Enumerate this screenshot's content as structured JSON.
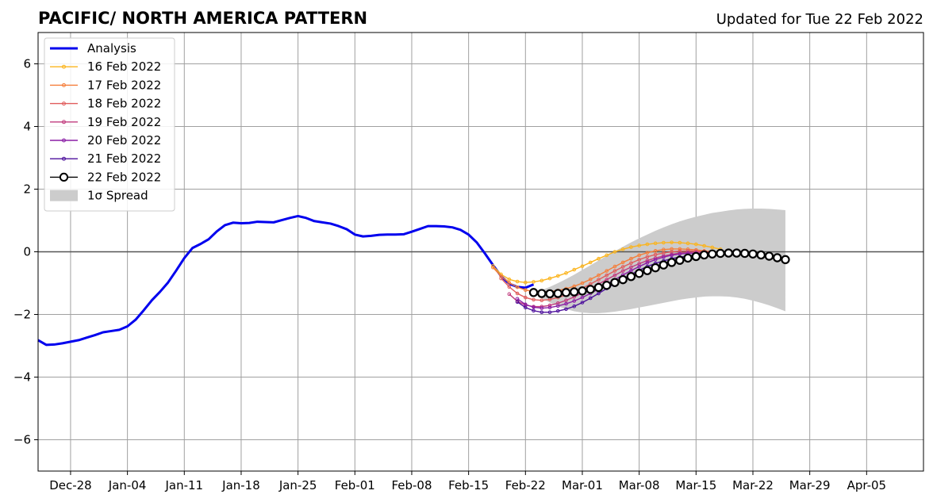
{
  "chart_data": {
    "type": "line",
    "title": "PACIFIC/ NORTH AMERICA PATTERN",
    "subtitle": "Updated for Tue 22 Feb 2022",
    "xlabel": "",
    "ylabel": "",
    "xlim": [
      "2021-12-24",
      "2022-04-12"
    ],
    "ylim": [
      -7,
      7
    ],
    "grid": true,
    "legend_position": "top-left",
    "x_ticks": [
      "2021-12-28",
      "2022-01-04",
      "2022-01-11",
      "2022-01-18",
      "2022-01-25",
      "2022-02-01",
      "2022-02-08",
      "2022-02-15",
      "2022-02-22",
      "2022-03-01",
      "2022-03-08",
      "2022-03-15",
      "2022-03-22",
      "2022-03-29",
      "2022-04-05"
    ],
    "x_tick_labels": [
      "Dec-28",
      "Jan-04",
      "Jan-11",
      "Jan-18",
      "Jan-25",
      "Feb-01",
      "Feb-08",
      "Feb-15",
      "Feb-22",
      "Mar-01",
      "Mar-08",
      "Mar-15",
      "Mar-22",
      "Mar-29",
      "Apr-05"
    ],
    "y_ticks": [
      -6,
      -4,
      -2,
      0,
      2,
      4,
      6
    ],
    "y_tick_labels": [
      "−6",
      "−4",
      "−2",
      "0",
      "2",
      "4",
      "6"
    ],
    "analysis": {
      "name": "Analysis",
      "color": "#0000ee",
      "start_date": "2021-12-24",
      "values": [
        -2.82,
        -2.97,
        -2.96,
        -2.92,
        -2.87,
        -2.82,
        -2.74,
        -2.66,
        -2.57,
        -2.53,
        -2.49,
        -2.38,
        -2.17,
        -1.87,
        -1.55,
        -1.28,
        -0.98,
        -0.6,
        -0.2,
        0.12,
        0.25,
        0.4,
        0.65,
        0.85,
        0.93,
        0.91,
        0.92,
        0.96,
        0.95,
        0.94,
        1.01,
        1.08,
        1.14,
        1.08,
        0.98,
        0.94,
        0.9,
        0.82,
        0.72,
        0.55,
        0.49,
        0.51,
        0.54,
        0.55,
        0.55,
        0.56,
        0.64,
        0.73,
        0.82,
        0.82,
        0.81,
        0.78,
        0.7,
        0.55,
        0.3,
        -0.05,
        -0.42,
        -0.78,
        -1.02,
        -1.12,
        -1.15,
        -1.04
      ]
    },
    "forecasts": [
      {
        "name": "16 Feb 2022",
        "color": "#fbb41c",
        "start_date": "2022-02-18",
        "values": [
          -0.45,
          -0.72,
          -0.88,
          -0.95,
          -0.98,
          -0.96,
          -0.92,
          -0.85,
          -0.77,
          -0.68,
          -0.57,
          -0.46,
          -0.34,
          -0.22,
          -0.11,
          0.0,
          0.08,
          0.15,
          0.2,
          0.24,
          0.27,
          0.29,
          0.3,
          0.29,
          0.27,
          0.24,
          0.19,
          0.14,
          0.08
        ]
      },
      {
        "name": "17 Feb 2022",
        "color": "#f57e3a",
        "start_date": "2022-02-18",
        "values": [
          -0.5,
          -0.78,
          -0.99,
          -1.13,
          -1.22,
          -1.27,
          -1.28,
          -1.27,
          -1.24,
          -1.18,
          -1.1,
          -1.0,
          -0.88,
          -0.75,
          -0.61,
          -0.47,
          -0.34,
          -0.22,
          -0.11,
          -0.03,
          0.03,
          0.07,
          0.09,
          0.09,
          0.08,
          0.06,
          0.03,
          0.0,
          -0.03
        ]
      },
      {
        "name": "18 Feb 2022",
        "color": "#e05c5c",
        "start_date": "2022-02-19",
        "values": [
          -0.85,
          -1.12,
          -1.33,
          -1.46,
          -1.53,
          -1.55,
          -1.52,
          -1.46,
          -1.38,
          -1.28,
          -1.16,
          -1.03,
          -0.89,
          -0.75,
          -0.61,
          -0.48,
          -0.36,
          -0.25,
          -0.16,
          -0.09,
          -0.04,
          0.0,
          0.02,
          0.03,
          0.02,
          0.01,
          -0.01,
          -0.03
        ]
      },
      {
        "name": "19 Feb 2022",
        "color": "#c13c7e",
        "start_date": "2022-02-20",
        "values": [
          -1.35,
          -1.58,
          -1.7,
          -1.75,
          -1.75,
          -1.71,
          -1.64,
          -1.55,
          -1.44,
          -1.31,
          -1.17,
          -1.03,
          -0.89,
          -0.75,
          -0.61,
          -0.49,
          -0.38,
          -0.28,
          -0.2,
          -0.13,
          -0.08,
          -0.04,
          -0.02,
          -0.01,
          -0.01,
          -0.02,
          -0.03
        ]
      },
      {
        "name": "20 Feb 2022",
        "color": "#8b1fa6",
        "start_date": "2022-02-21",
        "values": [
          -1.5,
          -1.68,
          -1.77,
          -1.8,
          -1.78,
          -1.73,
          -1.66,
          -1.57,
          -1.46,
          -1.33,
          -1.19,
          -1.04,
          -0.89,
          -0.74,
          -0.6,
          -0.47,
          -0.35,
          -0.25,
          -0.17,
          -0.11,
          -0.07,
          -0.05,
          -0.05,
          -0.05,
          -0.06,
          -0.08
        ]
      },
      {
        "name": "21 Feb 2022",
        "color": "#4c0f9c",
        "start_date": "2022-02-21",
        "values": [
          -1.6,
          -1.78,
          -1.88,
          -1.93,
          -1.93,
          -1.89,
          -1.83,
          -1.74,
          -1.62,
          -1.48,
          -1.33,
          -1.17,
          -1.01,
          -0.86,
          -0.72,
          -0.59,
          -0.47,
          -0.37,
          -0.29,
          -0.22,
          -0.17,
          -0.13,
          -0.1,
          -0.08,
          -0.07,
          -0.07,
          -0.07
        ]
      },
      {
        "name": "22 Feb 2022",
        "color": "#000000",
        "start_date": "2022-02-23",
        "marker": "open-circle",
        "values": [
          -1.3,
          -1.33,
          -1.34,
          -1.33,
          -1.3,
          -1.28,
          -1.25,
          -1.2,
          -1.14,
          -1.07,
          -0.98,
          -0.89,
          -0.79,
          -0.69,
          -0.6,
          -0.51,
          -0.42,
          -0.34,
          -0.27,
          -0.2,
          -0.15,
          -0.1,
          -0.07,
          -0.05,
          -0.04,
          -0.04,
          -0.05,
          -0.07,
          -0.1,
          -0.14,
          -0.19,
          -0.25
        ]
      }
    ],
    "spread": {
      "name": "1σ Spread",
      "color": "#cccccc",
      "start_date": "2022-02-23",
      "upper": [
        -1.3,
        -1.22,
        -1.12,
        -1.0,
        -0.87,
        -0.73,
        -0.58,
        -0.43,
        -0.28,
        -0.13,
        0.02,
        0.16,
        0.3,
        0.43,
        0.55,
        0.67,
        0.78,
        0.88,
        0.97,
        1.05,
        1.12,
        1.18,
        1.24,
        1.28,
        1.32,
        1.35,
        1.37,
        1.38,
        1.38,
        1.37,
        1.35,
        1.33
      ],
      "lower": [
        -1.3,
        -1.48,
        -1.62,
        -1.74,
        -1.83,
        -1.9,
        -1.94,
        -1.96,
        -1.96,
        -1.94,
        -1.91,
        -1.87,
        -1.83,
        -1.78,
        -1.73,
        -1.68,
        -1.63,
        -1.58,
        -1.53,
        -1.49,
        -1.46,
        -1.43,
        -1.42,
        -1.42,
        -1.43,
        -1.46,
        -1.5,
        -1.56,
        -1.63,
        -1.71,
        -1.8,
        -1.9
      ]
    }
  }
}
